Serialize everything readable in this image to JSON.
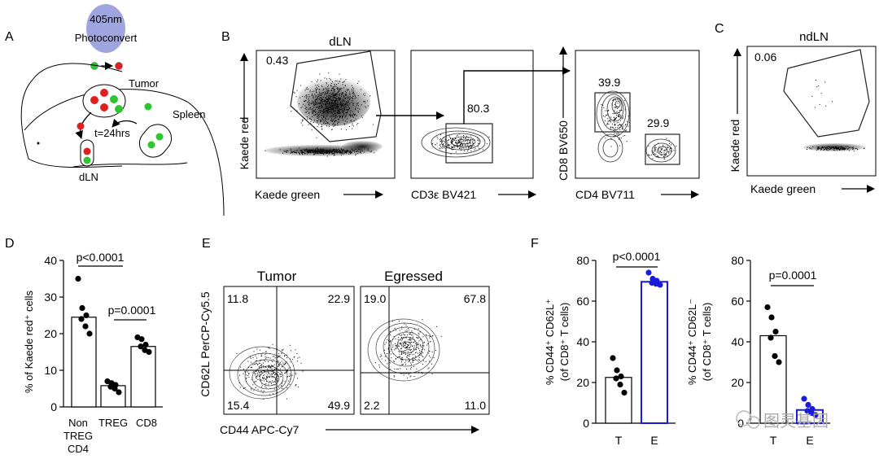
{
  "panelA": {
    "letter": "A",
    "laser_line1": "405nm",
    "laser_line2": "Photoconvert",
    "tumor": "Tumor",
    "spleen": "Spleen",
    "time": "t=24hrs",
    "dln": "dLN"
  },
  "panelB": {
    "letter": "B",
    "title": "dLN",
    "plot1": {
      "gate": "0.43",
      "ylabel": "Kaede red",
      "xlabel": "Kaede green"
    },
    "plot2": {
      "gate": "80.3",
      "xlabel": "CD3ε BV421"
    },
    "plot3": {
      "gate1": "39.9",
      "gate2": "29.9",
      "ylabel": "CD8 BV650",
      "xlabel": "CD4 BV711"
    }
  },
  "panelC": {
    "letter": "C",
    "title": "ndLN",
    "gate": "0.06",
    "ylabel": "Kaede red",
    "xlabel": "Kaede green"
  },
  "panelD": {
    "letter": "D",
    "ylabel": "% of Kaede red⁺ cells",
    "yticks": [
      "0",
      "10",
      "20",
      "30",
      "40"
    ],
    "p1": "p<0.0001",
    "p2": "p=0.0001",
    "cat1_line1": "Non",
    "cat1_line2": "TREG",
    "cat1_line3": "CD4",
    "cat2": "TREG",
    "cat3": "CD8"
  },
  "panelE": {
    "letter": "E",
    "title1": "Tumor",
    "title2": "Egressed",
    "q1": {
      "ul": "11.8",
      "ur": "22.9",
      "ll": "15.4",
      "lr": "49.9"
    },
    "q2": {
      "ul": "19.0",
      "ur": "67.8",
      "ll": "2.2",
      "lr": "11.0"
    },
    "ylabel": "CD62L PerCP-Cy5.5",
    "xlabel": "CD44 APC-Cy7"
  },
  "panelF": {
    "letter": "F",
    "left": {
      "ylabel1": "% CD44⁺ CD62L⁺",
      "ylabel2": "(of CD8⁺ T cells)",
      "p": "p<0.0001",
      "yticks": [
        "0",
        "20",
        "40",
        "60",
        "80"
      ],
      "cat1": "T",
      "cat2": "E"
    },
    "right": {
      "ylabel1": "% CD44⁺ CD62L⁻",
      "ylabel2": "(of CD8⁺ T cells)",
      "p": "p=0.0001",
      "yticks": [
        "0",
        "20",
        "40",
        "60",
        "80"
      ],
      "cat1": "T",
      "cat2": "E"
    }
  },
  "watermark": "图灵基因",
  "chart_data": [
    {
      "type": "bar",
      "title": "D",
      "ylabel": "% of Kaede red+ cells",
      "ylim": [
        0,
        40
      ],
      "categories": [
        "Non TREG CD4",
        "TREG",
        "CD8"
      ],
      "values": [
        24.5,
        5.8,
        16.5
      ],
      "points": [
        [
          35,
          27,
          25,
          24,
          22,
          20
        ],
        [
          7,
          6.5,
          6,
          5.5,
          5,
          4
        ],
        [
          19,
          18.5,
          17,
          16.5,
          15.5,
          15
        ]
      ],
      "annotations": [
        "p<0.0001",
        "p=0.0001"
      ]
    },
    {
      "type": "bar",
      "title": "F left",
      "ylabel": "% CD44+ CD62L+ (of CD8+ T cells)",
      "ylim": [
        0,
        80
      ],
      "categories": [
        "T",
        "E"
      ],
      "values": [
        22.5,
        69.5
      ],
      "points": [
        [
          32,
          26,
          23,
          22,
          19,
          15
        ],
        [
          74,
          71,
          70,
          69,
          68.5,
          68
        ]
      ],
      "annotations": [
        "p<0.0001"
      ]
    },
    {
      "type": "bar",
      "title": "F right",
      "ylabel": "% CD44+ CD62L- (of CD8+ T cells)",
      "ylim": [
        0,
        80
      ],
      "categories": [
        "T",
        "E"
      ],
      "values": [
        43,
        6.5
      ],
      "points": [
        [
          57,
          52,
          45,
          42,
          33,
          30
        ],
        [
          12,
          9,
          7,
          6,
          5,
          4
        ]
      ],
      "annotations": [
        "p=0.0001"
      ]
    }
  ]
}
